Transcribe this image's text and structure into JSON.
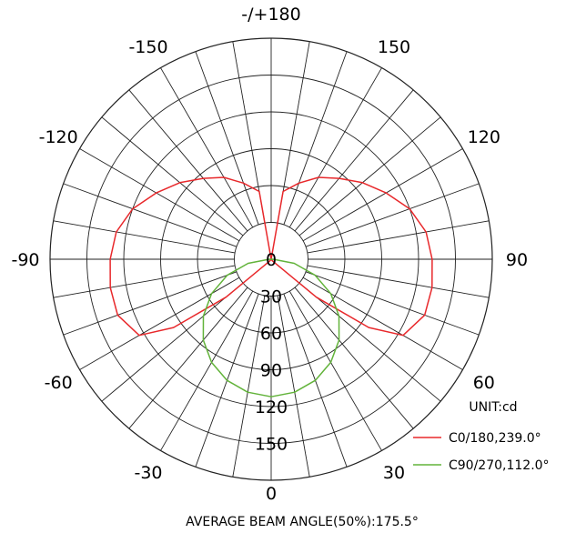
{
  "chart_data": {
    "type": "polar-line",
    "unit_label": "UNIT:cd",
    "footer": "AVERAGE BEAM ANGLE(50%):175.5°",
    "angular_labels": [
      {
        "angle": 180,
        "text": "-/+180"
      },
      {
        "angle": 150,
        "text": "150"
      },
      {
        "angle": 120,
        "text": "120"
      },
      {
        "angle": 90,
        "text": "90"
      },
      {
        "angle": 60,
        "text": "60"
      },
      {
        "angle": 30,
        "text": "30"
      },
      {
        "angle": 0,
        "text": "0"
      },
      {
        "angle": -30,
        "text": "-30"
      },
      {
        "angle": -60,
        "text": "-60"
      },
      {
        "angle": -90,
        "text": "-90"
      },
      {
        "angle": -120,
        "text": "-120"
      },
      {
        "angle": -150,
        "text": "-150"
      }
    ],
    "radial_ticks": [
      0,
      30,
      60,
      90,
      120,
      150
    ],
    "rmax": 180,
    "series": [
      {
        "name": "C0/180,239.0°",
        "color": "#e8282b",
        "points": [
          [
            0,
            0
          ],
          [
            20,
            0
          ],
          [
            40,
            2
          ],
          [
            50,
            48
          ],
          [
            55,
            97
          ],
          [
            60,
            124
          ],
          [
            70,
            133
          ],
          [
            80,
            133
          ],
          [
            90,
            131
          ],
          [
            100,
            128
          ],
          [
            110,
            120
          ],
          [
            120,
            108
          ],
          [
            130,
            97
          ],
          [
            140,
            86
          ],
          [
            150,
            77
          ],
          [
            160,
            66
          ],
          [
            170,
            56
          ],
          [
            180,
            0
          ],
          [
            190,
            56
          ],
          [
            200,
            66
          ],
          [
            210,
            77
          ],
          [
            220,
            86
          ],
          [
            230,
            97
          ],
          [
            240,
            108
          ],
          [
            250,
            120
          ],
          [
            260,
            128
          ],
          [
            270,
            131
          ],
          [
            280,
            133
          ],
          [
            290,
            133
          ],
          [
            300,
            124
          ],
          [
            305,
            97
          ],
          [
            310,
            48
          ],
          [
            320,
            2
          ],
          [
            340,
            0
          ],
          [
            360,
            0
          ]
        ]
      },
      {
        "name": "C90/270,112.0°",
        "color": "#62b33a",
        "points": [
          [
            0,
            112
          ],
          [
            10,
            110
          ],
          [
            20,
            105
          ],
          [
            30,
            97
          ],
          [
            40,
            86
          ],
          [
            50,
            72
          ],
          [
            60,
            56
          ],
          [
            70,
            38
          ],
          [
            80,
            19
          ],
          [
            88,
            2
          ],
          [
            90,
            0
          ],
          [
            270,
            0
          ],
          [
            272,
            2
          ],
          [
            280,
            19
          ],
          [
            290,
            38
          ],
          [
            300,
            56
          ],
          [
            310,
            72
          ],
          [
            320,
            86
          ],
          [
            330,
            97
          ],
          [
            340,
            105
          ],
          [
            350,
            110
          ],
          [
            360,
            112
          ]
        ]
      }
    ]
  }
}
